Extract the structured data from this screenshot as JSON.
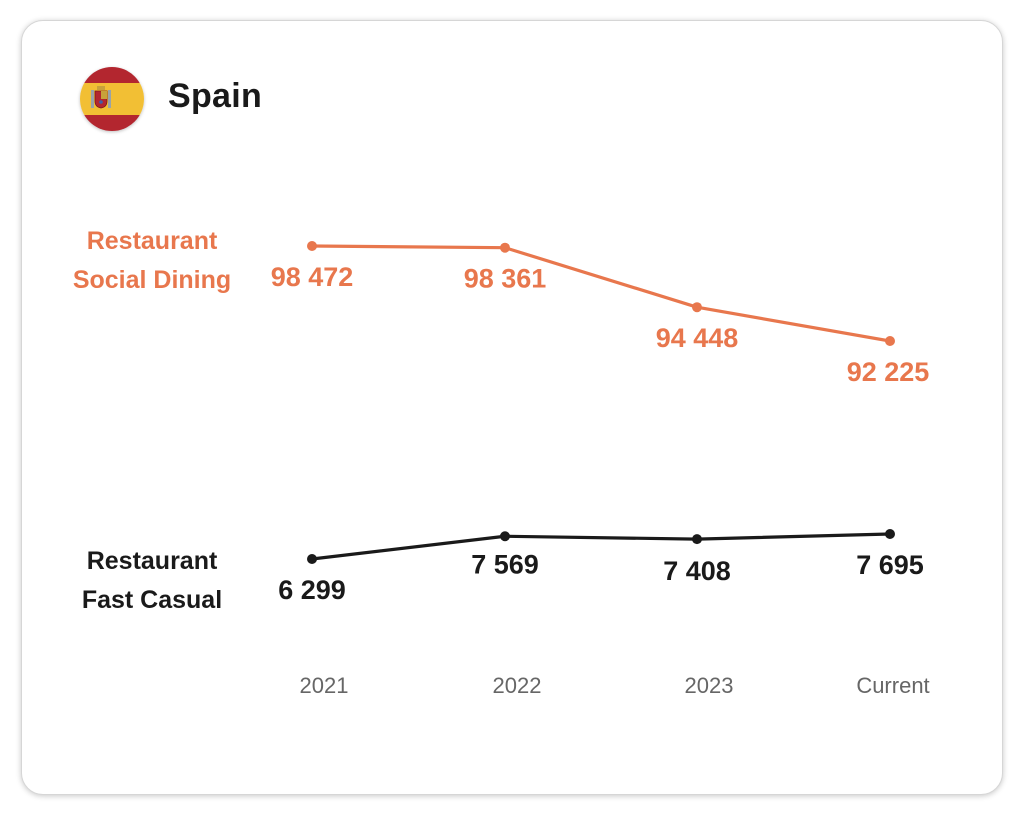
{
  "header": {
    "country": "Spain",
    "flag_icon": "spain-flag-icon"
  },
  "colors": {
    "social_dining": "#e8774d",
    "fast_casual": "#1a1a1a",
    "axis_text": "#666666"
  },
  "chart_data": {
    "type": "line",
    "categories": [
      "2021",
      "2022",
      "2023",
      "Current"
    ],
    "series": [
      {
        "key": "social_dining",
        "name_lines": [
          "Restaurant",
          "Social Dining"
        ],
        "values": [
          98472,
          98361,
          94448,
          92225
        ],
        "labels": [
          "98 472",
          "98 361",
          "94 448",
          "92 225"
        ]
      },
      {
        "key": "fast_casual",
        "name_lines": [
          "Restaurant",
          "Fast Casual"
        ],
        "values": [
          6299,
          7569,
          7408,
          7695
        ],
        "labels": [
          "6 299",
          "7 569",
          "7 408",
          "7 695"
        ]
      }
    ],
    "grid": false,
    "legend": "left"
  }
}
